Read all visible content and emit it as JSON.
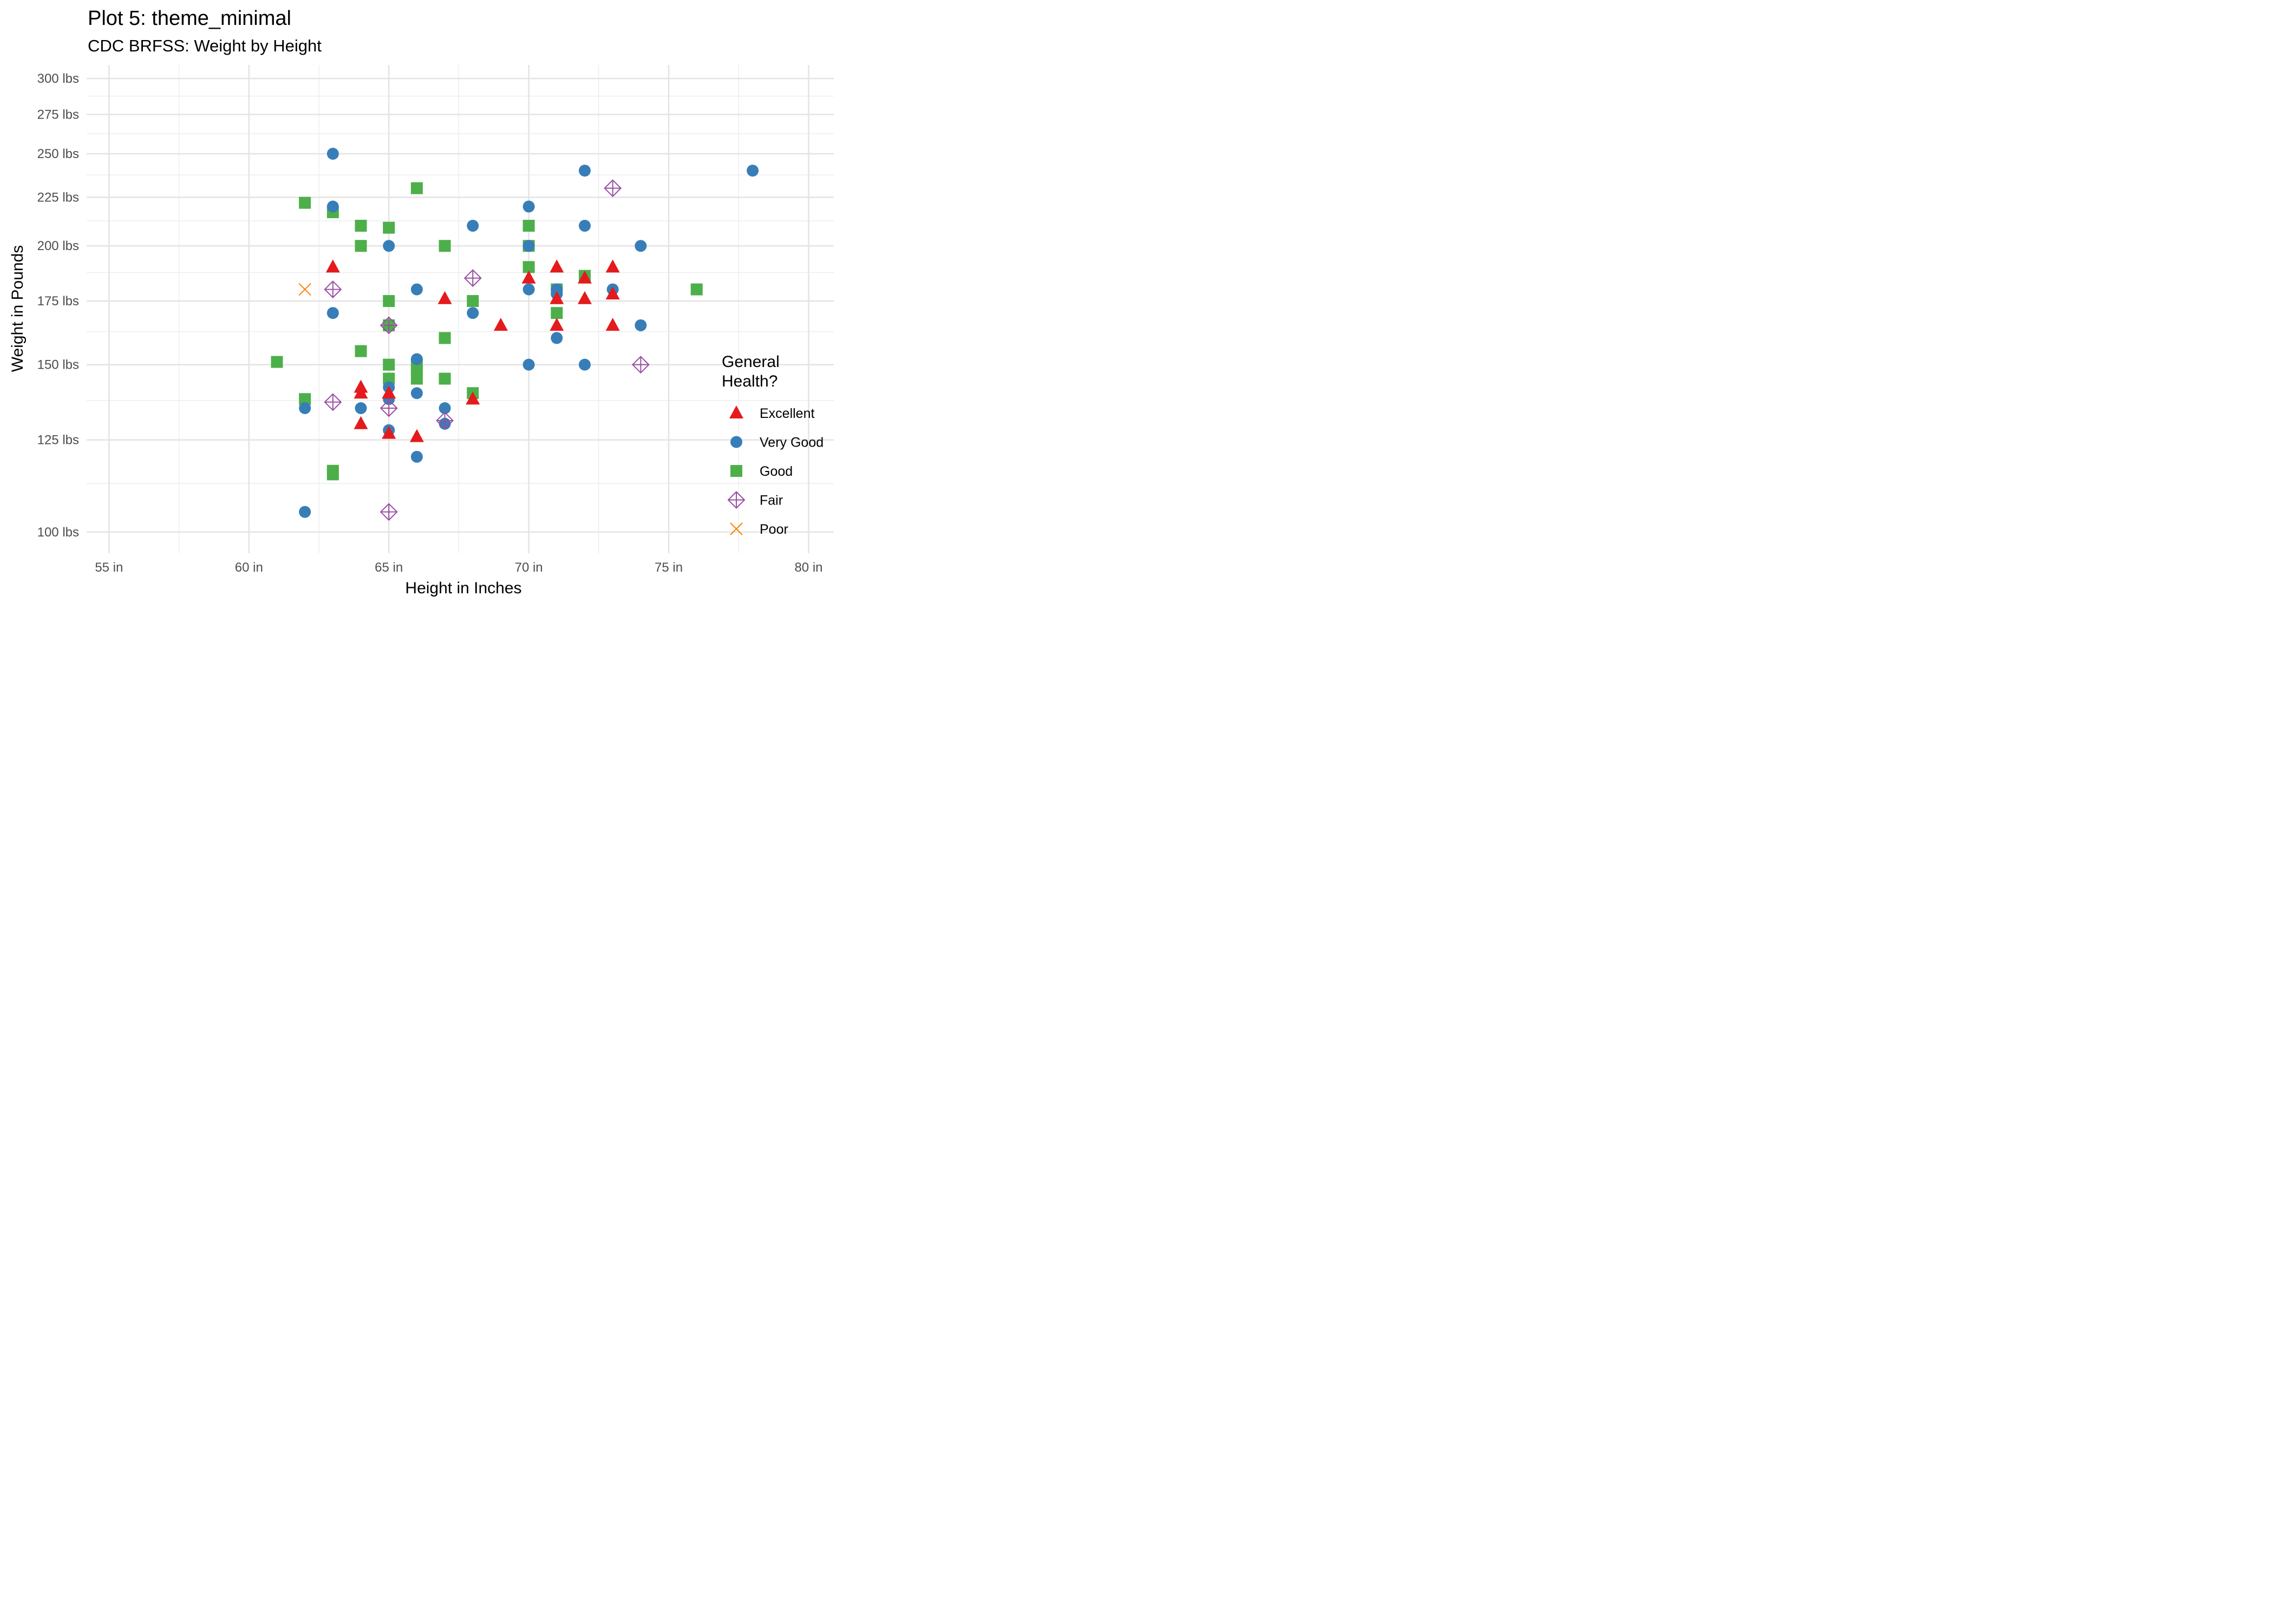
{
  "chart_data": {
    "type": "scatter",
    "title": "Plot 5: theme_minimal",
    "subtitle": "CDC BRFSS: Weight by Height",
    "xlabel": "Height in Inches",
    "ylabel": "Weight in Pounds",
    "x_scale": "linear",
    "y_scale": "log",
    "xlim": [
      54.2,
      80.9
    ],
    "ylim": [
      95,
      310
    ],
    "x_ticks": [
      55,
      60,
      65,
      70,
      75,
      80
    ],
    "x_tick_labels": [
      "55 in",
      "60 in",
      "65 in",
      "70 in",
      "75 in",
      "80 in"
    ],
    "x_minor_ticks": [
      57.5,
      62.5,
      67.5,
      72.5,
      77.5
    ],
    "y_ticks": [
      100,
      125,
      150,
      175,
      200,
      225,
      250,
      275,
      300
    ],
    "y_tick_labels": [
      "100 lbs",
      "125 lbs",
      "150 lbs",
      "175 lbs",
      "200 lbs",
      "225 lbs",
      "250 lbs",
      "275 lbs",
      "300 lbs"
    ],
    "y_minor_ticks": [
      112.5,
      137.5,
      162.5,
      187.5,
      212.5,
      237.5,
      262.5,
      287.5
    ],
    "grid": true,
    "legend_title": "General\nHealth?",
    "legend_position": "right",
    "series": [
      {
        "name": "Excellent",
        "shape": "filled-triangle",
        "color": "#e41a1c",
        "points": [
          [
            63,
            190
          ],
          [
            64,
            142
          ],
          [
            64,
            140
          ],
          [
            64,
            130
          ],
          [
            65,
            140
          ],
          [
            65,
            127
          ],
          [
            66,
            126
          ],
          [
            67,
            176
          ],
          [
            68,
            138
          ],
          [
            69,
            165
          ],
          [
            70,
            185
          ],
          [
            71,
            190
          ],
          [
            71,
            176
          ],
          [
            71,
            165
          ],
          [
            72,
            185
          ],
          [
            72,
            176
          ],
          [
            73,
            190
          ],
          [
            73,
            178
          ],
          [
            73,
            165
          ]
        ]
      },
      {
        "name": "Very Good",
        "shape": "filled-circle",
        "color": "#377eb8",
        "points": [
          [
            62,
            135
          ],
          [
            62,
            105
          ],
          [
            63,
            250
          ],
          [
            63,
            220
          ],
          [
            63,
            170
          ],
          [
            64,
            135
          ],
          [
            65,
            200
          ],
          [
            65,
            142
          ],
          [
            65,
            138
          ],
          [
            65,
            128
          ],
          [
            66,
            180
          ],
          [
            66,
            152
          ],
          [
            66,
            140
          ],
          [
            66,
            120
          ],
          [
            67,
            135
          ],
          [
            67,
            130
          ],
          [
            68,
            210
          ],
          [
            68,
            170
          ],
          [
            70,
            220
          ],
          [
            70,
            200
          ],
          [
            70,
            180
          ],
          [
            70,
            150
          ],
          [
            71,
            180
          ],
          [
            71,
            178
          ],
          [
            71,
            160
          ],
          [
            72,
            240
          ],
          [
            72,
            210
          ],
          [
            72,
            150
          ],
          [
            73,
            180
          ],
          [
            74,
            200
          ],
          [
            74,
            165
          ],
          [
            78,
            240
          ]
        ]
      },
      {
        "name": "Good",
        "shape": "filled-square",
        "color": "#4daf4a",
        "points": [
          [
            61,
            151
          ],
          [
            62,
            222
          ],
          [
            62,
            138
          ],
          [
            63,
            217
          ],
          [
            63,
            116
          ],
          [
            63,
            115
          ],
          [
            64,
            210
          ],
          [
            64,
            200
          ],
          [
            64,
            155
          ],
          [
            65,
            209
          ],
          [
            65,
            175
          ],
          [
            65,
            165
          ],
          [
            65,
            150
          ],
          [
            65,
            145
          ],
          [
            66,
            230
          ],
          [
            66,
            150
          ],
          [
            66,
            148
          ],
          [
            66,
            145
          ],
          [
            67,
            200
          ],
          [
            67,
            160
          ],
          [
            67,
            145
          ],
          [
            68,
            175
          ],
          [
            68,
            140
          ],
          [
            70,
            210
          ],
          [
            70,
            200
          ],
          [
            70,
            190
          ],
          [
            71,
            180
          ],
          [
            71,
            170
          ],
          [
            72,
            186
          ],
          [
            76,
            180
          ]
        ]
      },
      {
        "name": "Fair",
        "shape": "diamond-plus",
        "color": "#984ea3",
        "points": [
          [
            63,
            180
          ],
          [
            63,
            137
          ],
          [
            65,
            165
          ],
          [
            65,
            135
          ],
          [
            65,
            105
          ],
          [
            67,
            131
          ],
          [
            68,
            185
          ],
          [
            73,
            230
          ],
          [
            74,
            150
          ]
        ]
      },
      {
        "name": "Poor",
        "shape": "cross",
        "color": "#ff7f00",
        "points": [
          [
            62,
            180
          ]
        ]
      }
    ]
  }
}
